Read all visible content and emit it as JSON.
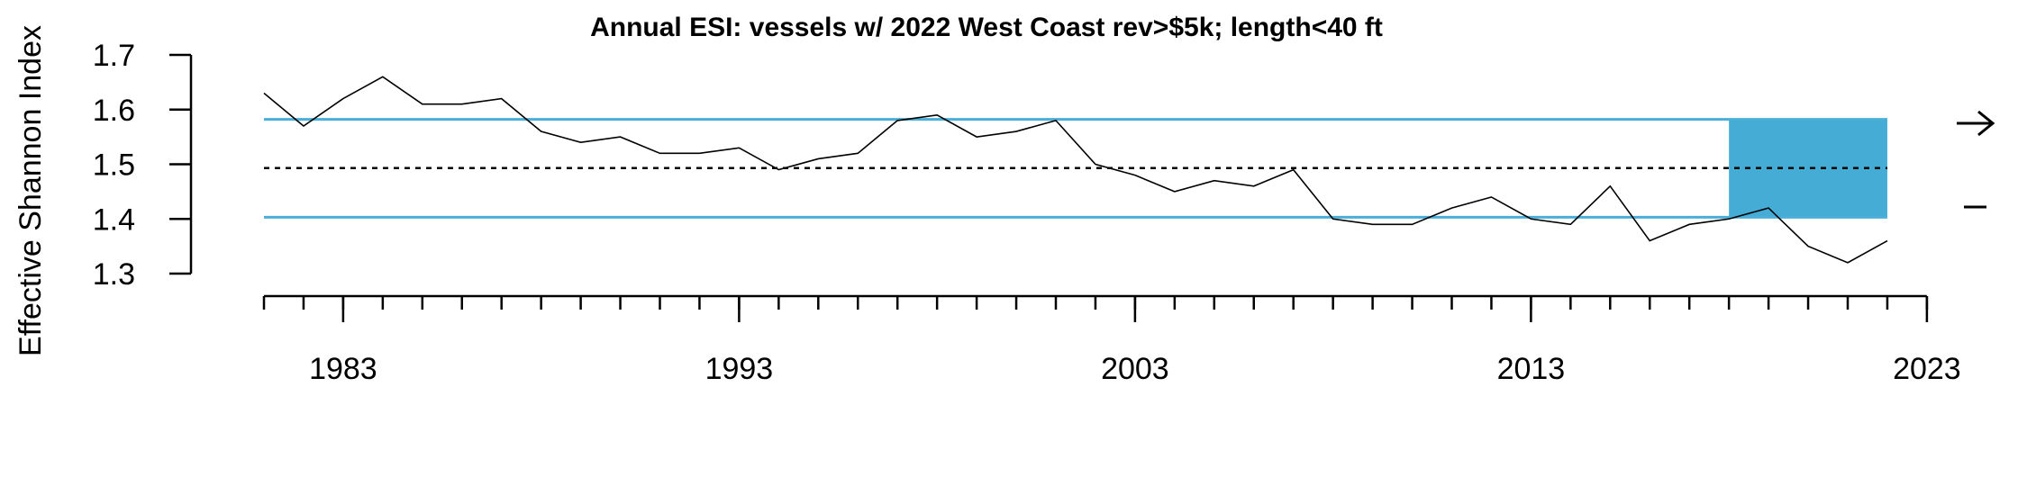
{
  "chart_data": {
    "type": "line",
    "title": "Annual ESI: vessels w/ 2022 West Coast rev>$5k; length<40 ft",
    "xlabel": "",
    "ylabel": "Effective Shannon Index",
    "xlim": [
      1981,
      2023
    ],
    "ylim": [
      1.3,
      1.7
    ],
    "yticks": [
      "1.3",
      "1.4",
      "1.5",
      "1.6",
      "1.7"
    ],
    "xticks_labeled": [
      "1983",
      "1993",
      "2003",
      "2013",
      "2023"
    ],
    "x_minor_tick_years": [
      1981,
      1982,
      1983,
      1984,
      1985,
      1986,
      1987,
      1988,
      1989,
      1990,
      1991,
      1992,
      1993,
      1994,
      1995,
      1996,
      1997,
      1998,
      1999,
      2000,
      2001,
      2002,
      2003,
      2004,
      2005,
      2006,
      2007,
      2008,
      2009,
      2010,
      2011,
      2012,
      2013,
      2014,
      2015,
      2016,
      2017,
      2018,
      2019,
      2020,
      2021,
      2022,
      2023
    ],
    "series": [
      {
        "x": [
          1981,
          1982,
          1983,
          1984,
          1985,
          1986,
          1987,
          1988,
          1989,
          1990,
          1991,
          1992,
          1993,
          1994,
          1995,
          1996,
          1997,
          1998,
          1999,
          2000,
          2001,
          2002,
          2003,
          2004,
          2005,
          2006,
          2007,
          2008,
          2009,
          2010,
          2011,
          2012,
          2013,
          2014,
          2015,
          2016,
          2017,
          2018,
          2019,
          2020,
          2021,
          2022
        ],
        "values": [
          1.63,
          1.57,
          1.62,
          1.66,
          1.61,
          1.61,
          1.62,
          1.56,
          1.54,
          1.55,
          1.52,
          1.52,
          1.53,
          1.49,
          1.51,
          1.52,
          1.58,
          1.59,
          1.55,
          1.56,
          1.58,
          1.5,
          1.48,
          1.45,
          1.47,
          1.46,
          1.49,
          1.4,
          1.39,
          1.39,
          1.42,
          1.44,
          1.4,
          1.39,
          1.46,
          1.36,
          1.39,
          1.4,
          1.42,
          1.35,
          1.32,
          1.36
        ],
        "color": "#000000"
      }
    ],
    "mean_line": 1.493,
    "upper_sd_line": 1.582,
    "lower_sd_line": 1.403,
    "sd_line_color": "#4aaed8",
    "recent_period": [
      2018,
      2022
    ],
    "recent_box_color": "#45acd6",
    "trend_symbol": "→",
    "mean_symbol": "–",
    "grid": false
  }
}
